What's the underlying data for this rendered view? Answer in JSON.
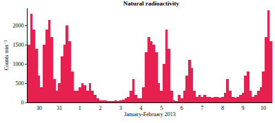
{
  "chart_data": {
    "type": "bar",
    "title": "Natural radioactivity",
    "x_label": "January-February 2013",
    "y_label": "Counts min⁻¹",
    "color": "#e8204f",
    "categories": [
      null,
      null,
      null,
      null,
      "30",
      null,
      null,
      null,
      null,
      null,
      null,
      null,
      "31",
      null,
      null,
      null,
      null,
      null,
      null,
      null,
      "1",
      null,
      null,
      null,
      null,
      null,
      null,
      null,
      "2",
      null,
      null,
      null,
      null,
      null,
      null,
      null,
      "3",
      null,
      null,
      null,
      null,
      null,
      null,
      null,
      "4",
      null,
      null,
      null,
      null,
      null,
      null,
      null,
      "5",
      null,
      null,
      null,
      null,
      null,
      null,
      null,
      "6",
      null,
      null,
      null,
      null,
      null,
      null,
      null,
      "7",
      null,
      null,
      null,
      null,
      null,
      null,
      null,
      "8",
      null,
      null,
      null,
      null,
      null,
      null,
      null,
      "9",
      null,
      null,
      null,
      null,
      null,
      null,
      null,
      "10",
      null,
      null,
      null
    ],
    "values": [
      1500,
      2300,
      1900,
      1400,
      700,
      400,
      1500,
      1900,
      2150,
      1700,
      600,
      300,
      500,
      1200,
      1500,
      2000,
      1600,
      800,
      300,
      300,
      400,
      500,
      450,
      300,
      500,
      300,
      200,
      100,
      60,
      50,
      50,
      40,
      40,
      40,
      50,
      40,
      60,
      80,
      100,
      150,
      300,
      600,
      200,
      100,
      100,
      400,
      1300,
      1700,
      1600,
      1500,
      1300,
      500,
      300,
      1000,
      1900,
      1400,
      300,
      50,
      30,
      200,
      100,
      300,
      700,
      1100,
      900,
      300,
      150,
      200,
      150,
      200,
      150,
      150,
      120,
      150,
      150,
      120,
      150,
      250,
      600,
      300,
      150,
      120,
      150,
      200,
      250,
      700,
      800,
      300,
      150,
      200,
      300,
      400,
      800,
      1700,
      2400,
      1600
    ],
    "ylim": [
      0,
      2450
    ],
    "yticks": [
      0,
      500,
      1000,
      1500,
      2000
    ],
    "grid": false
  }
}
